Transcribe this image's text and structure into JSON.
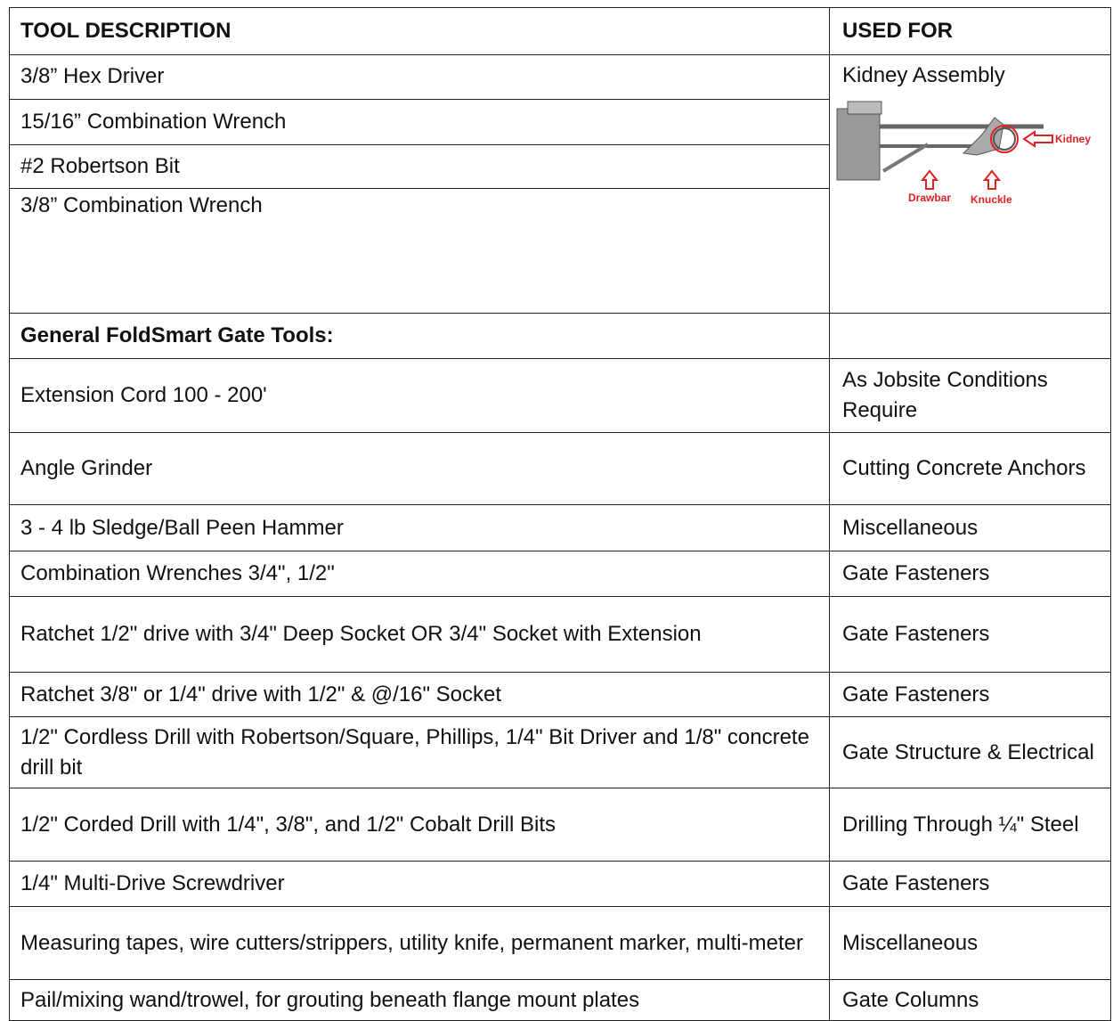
{
  "header": {
    "tool": "TOOL DESCRIPTION",
    "used": "USED FOR"
  },
  "kidney": {
    "tools": [
      "3/8” Hex Driver",
      "15/16” Combination Wrench",
      "#2 Robertson Bit",
      "3/8” Combination Wrench"
    ],
    "used": "Kidney Assembly",
    "diagram": {
      "kidney": "Kidney",
      "drawbar": "Drawbar",
      "knuckle": "Knuckle"
    }
  },
  "section": "General FoldSmart Gate Tools:",
  "rows": [
    [
      "Extension Cord 100 - 200'",
      "As Jobsite Conditions Require"
    ],
    [
      "Angle Grinder",
      "Cutting Concrete Anchors"
    ],
    [
      "3 - 4 lb Sledge/Ball Peen Hammer",
      "Miscellaneous"
    ],
    [
      "Combination Wrenches 3/4\", 1/2\"",
      "Gate Fasteners"
    ],
    [
      "Ratchet 1/2\" drive with 3/4\" Deep Socket OR 3/4\" Socket with Extension",
      "Gate Fasteners"
    ],
    [
      "Ratchet 3/8\" or 1/4\" drive with 1/2\" & @/16\" Socket",
      "Gate Fasteners"
    ],
    [
      "1/2\" Cordless Drill with Robertson/Square, Phillips, 1/4\" Bit Driver and 1/8\" concrete drill bit",
      "Gate Structure & Electrical"
    ],
    [
      "1/2\" Corded Drill with 1/4\", 3/8\", and 1/2\" Cobalt Drill Bits",
      "Drilling Through ¼\" Steel"
    ],
    [
      "1/4\" Multi-Drive Screwdriver",
      "Gate Fasteners"
    ],
    [
      "Measuring tapes, wire cutters/strippers, utility knife, permanent marker, multi-meter",
      "Miscellaneous"
    ],
    [
      "Pail/mixing wand/trowel, for grouting beneath flange mount plates",
      "Gate Columns"
    ]
  ]
}
